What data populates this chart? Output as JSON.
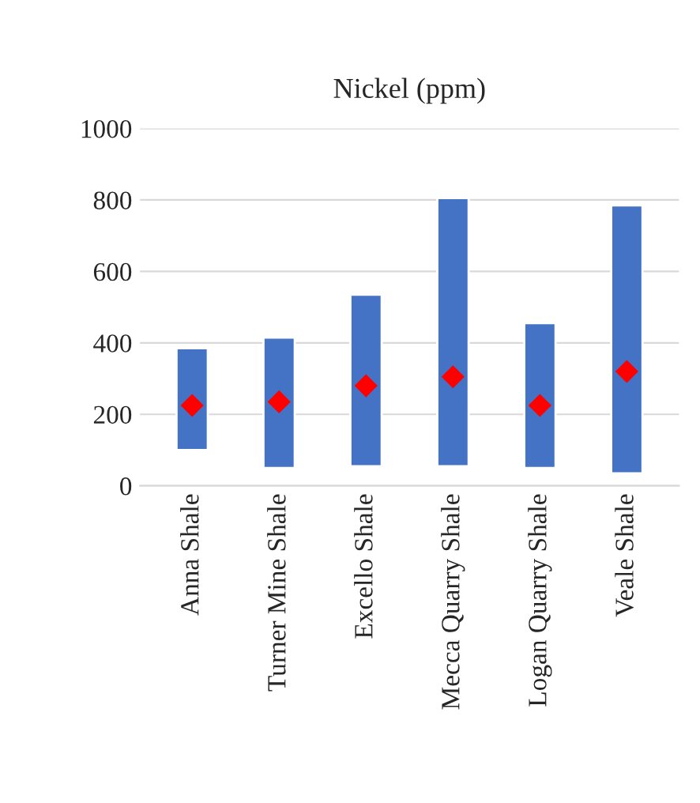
{
  "chart_data": {
    "type": "bar",
    "title": "Nickel (ppm)",
    "categories": [
      "Anna Shale",
      "Turner Mine Shale",
      "Excello Shale",
      "Mecca Quarry Shale",
      "Logan Quarry Shale",
      "Veale Shale"
    ],
    "series": [
      {
        "color": "#4472c4",
        "base": [
          100,
          50,
          55,
          55,
          50,
          35
        ],
        "values": [
          285,
          365,
          480,
          750,
          405,
          750
        ]
      },
      {
        "type": "scatter",
        "color": "#ff0000",
        "marker": "diamond",
        "x": [
          "Anna Shale",
          "Turner Mine Shale",
          "Excello Shale",
          "Mecca Quarry Shale",
          "Logan Quarry Shale",
          "Veale Shale"
        ],
        "values": [
          225,
          235,
          280,
          305,
          225,
          320
        ]
      }
    ],
    "ylim": [
      0,
      1000
    ],
    "yticks": [
      0,
      200,
      400,
      600,
      800,
      1000
    ],
    "grid": "y",
    "legend": false
  }
}
